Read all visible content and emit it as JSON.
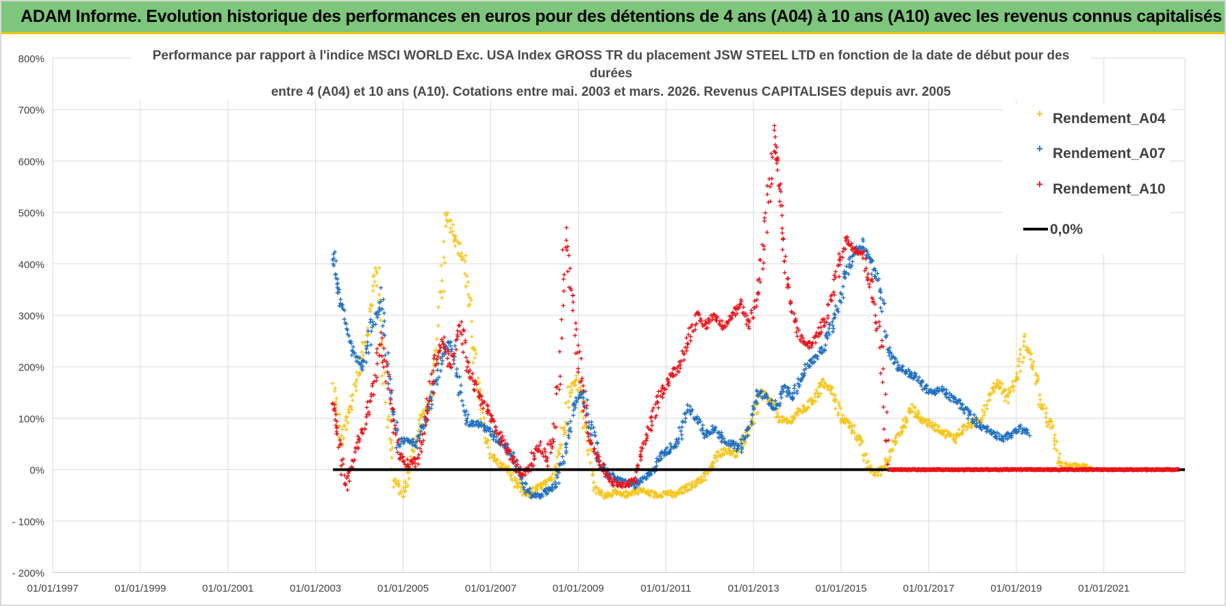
{
  "banner": {
    "title": "ADAM Informe. Evolution historique des performances en euros pour des détentions de 4 ans (A04) à 10 ans (A10) avec les revenus connus capitalisés"
  },
  "colors": {
    "banner_bg": "#7dc67b",
    "banner_border": "#f1c40f",
    "a04": "#f5c518",
    "a07": "#1f6fbf",
    "a10": "#e8141b",
    "zero": "#000000",
    "grid": "#d9d9d9"
  },
  "chart_data": {
    "type": "scatter",
    "title_lines": [
      "Performance par rapport à l'indice MSCI WORLD Exc. USA Index GROSS TR  du placement JSW STEEL LTD en fonction de la date de début pour des",
      "durées",
      "entre 4 (A04) et 10 ans (A10).  Cotations entre mai. 2003 et mars. 2026. Revenus CAPITALISES depuis avr. 2005"
    ],
    "xlim": [
      1997.0,
      2022.85
    ],
    "ylim": [
      -200,
      800
    ],
    "x_ticks": [
      1997,
      1999,
      2001,
      2003,
      2005,
      2007,
      2009,
      2011,
      2013,
      2015,
      2017,
      2019,
      2021
    ],
    "x_tick_labels": [
      "01/01/1997",
      "01/01/1999",
      "01/01/2001",
      "01/01/2003",
      "01/01/2005",
      "01/01/2007",
      "01/01/2009",
      "01/01/2011",
      "01/01/2013",
      "01/01/2015",
      "01/01/2017",
      "01/01/2019",
      "01/01/2021"
    ],
    "y_ticks": [
      -200,
      -100,
      0,
      100,
      200,
      300,
      400,
      500,
      600,
      700,
      800
    ],
    "y_tick_labels": [
      "- 200%",
      "- 100%",
      "0%",
      "100%",
      "200%",
      "300%",
      "400%",
      "500%",
      "600%",
      "700%",
      "800%"
    ],
    "legend_position": "top-right",
    "legend": [
      {
        "key": "a04",
        "label": "Rendement_A04",
        "marker": "+"
      },
      {
        "key": "a07",
        "label": "Rendement_A07",
        "marker": "+"
      },
      {
        "key": "a10",
        "label": "Rendement_A10",
        "marker": "+"
      },
      {
        "key": "zero",
        "label": "0,0%",
        "marker": "line"
      }
    ],
    "series": [
      {
        "key": "a04",
        "name": "Rendement_A04",
        "x": [
          2003.4,
          2003.6,
          2003.8,
          2004.0,
          2004.2,
          2004.4,
          2004.6,
          2004.8,
          2005.0,
          2005.2,
          2005.4,
          2005.6,
          2005.8,
          2006.0,
          2006.2,
          2006.4,
          2006.6,
          2006.8,
          2007.0,
          2007.2,
          2007.4,
          2007.6,
          2007.8,
          2008.0,
          2008.2,
          2008.4,
          2008.6,
          2008.8,
          2009.0,
          2009.2,
          2009.4,
          2009.6,
          2009.8,
          2010.0,
          2010.2,
          2010.4,
          2010.6,
          2010.8,
          2011.0,
          2011.2,
          2011.4,
          2011.6,
          2011.8,
          2012.0,
          2012.2,
          2012.4,
          2012.6,
          2012.8,
          2013.0,
          2013.2,
          2013.4,
          2013.6,
          2013.8,
          2014.0,
          2014.2,
          2014.4,
          2014.6,
          2014.8,
          2015.0,
          2015.2,
          2015.4,
          2015.6,
          2015.8,
          2016.0,
          2016.2,
          2016.4,
          2016.6,
          2016.8,
          2017.0,
          2017.2,
          2017.4,
          2017.6,
          2017.8,
          2018.0,
          2018.2,
          2018.4,
          2018.6,
          2018.8,
          2019.0,
          2019.2,
          2019.4,
          2019.6,
          2019.8,
          2020.0,
          2020.2,
          2020.4,
          2020.6,
          2020.8,
          2021.0,
          2021.2,
          2021.4,
          2021.6,
          2021.8,
          2022.0
        ],
        "values": [
          160,
          50,
          120,
          200,
          280,
          400,
          150,
          -20,
          -50,
          20,
          100,
          130,
          250,
          500,
          450,
          400,
          250,
          100,
          30,
          10,
          0,
          -30,
          -50,
          -40,
          -30,
          -20,
          50,
          150,
          180,
          60,
          -40,
          -50,
          -45,
          -50,
          -45,
          -40,
          -45,
          -50,
          -45,
          -50,
          -40,
          -30,
          -20,
          0,
          30,
          40,
          30,
          60,
          100,
          150,
          130,
          100,
          90,
          110,
          120,
          140,
          170,
          150,
          100,
          90,
          60,
          10,
          -10,
          10,
          50,
          80,
          120,
          100,
          90,
          80,
          70,
          60,
          80,
          90,
          100,
          150,
          170,
          140,
          180,
          250,
          200,
          120,
          80,
          10,
          5,
          10,
          5,
          0,
          0,
          0,
          0,
          0,
          0,
          0
        ]
      },
      {
        "key": "a07",
        "name": "Rendement_A07",
        "x": [
          2003.4,
          2003.5,
          2003.7,
          2003.9,
          2004.1,
          2004.3,
          2004.5,
          2004.7,
          2004.9,
          2005.1,
          2005.3,
          2005.5,
          2005.7,
          2005.9,
          2006.1,
          2006.3,
          2006.5,
          2006.7,
          2006.9,
          2007.1,
          2007.3,
          2007.5,
          2007.7,
          2007.9,
          2008.1,
          2008.3,
          2008.5,
          2008.7,
          2008.9,
          2009.1,
          2009.3,
          2009.5,
          2009.7,
          2009.9,
          2010.1,
          2010.3,
          2010.5,
          2010.7,
          2010.9,
          2011.1,
          2011.3,
          2011.5,
          2011.7,
          2011.9,
          2012.1,
          2012.3,
          2012.5,
          2012.7,
          2012.9,
          2013.1,
          2013.3,
          2013.5,
          2013.7,
          2013.9,
          2014.1,
          2014.3,
          2014.5,
          2014.7,
          2014.9,
          2015.1,
          2015.3,
          2015.5,
          2015.7,
          2015.9,
          2016.1,
          2016.3,
          2016.5,
          2016.7,
          2016.9,
          2017.1,
          2017.3,
          2017.5,
          2017.7,
          2017.9,
          2018.1,
          2018.3,
          2018.5,
          2018.7,
          2018.9,
          2019.1,
          2019.3
        ],
        "values": [
          420,
          350,
          280,
          220,
          200,
          280,
          330,
          150,
          50,
          60,
          50,
          100,
          150,
          220,
          250,
          150,
          90,
          90,
          80,
          60,
          50,
          30,
          -20,
          -50,
          -50,
          -40,
          -30,
          40,
          120,
          150,
          80,
          10,
          -10,
          -20,
          -25,
          -30,
          -20,
          0,
          30,
          40,
          60,
          120,
          100,
          70,
          80,
          60,
          50,
          40,
          80,
          150,
          140,
          120,
          160,
          140,
          180,
          210,
          220,
          260,
          300,
          380,
          420,
          440,
          400,
          350,
          230,
          200,
          190,
          180,
          160,
          150,
          155,
          140,
          130,
          110,
          90,
          80,
          70,
          60,
          70,
          80,
          70
        ]
      },
      {
        "key": "a10",
        "name": "Rendement_A10",
        "x": [
          2003.4,
          2003.5,
          2003.7,
          2003.9,
          2004.1,
          2004.3,
          2004.5,
          2004.7,
          2004.9,
          2005.1,
          2005.3,
          2005.5,
          2005.7,
          2005.9,
          2006.1,
          2006.3,
          2006.5,
          2006.7,
          2006.9,
          2007.1,
          2007.3,
          2007.5,
          2007.7,
          2007.9,
          2008.1,
          2008.3,
          2008.5,
          2008.7,
          2008.9,
          2009.1,
          2009.3,
          2009.5,
          2009.7,
          2009.9,
          2010.1,
          2010.3,
          2010.5,
          2010.7,
          2010.9,
          2011.1,
          2011.3,
          2011.5,
          2011.7,
          2011.9,
          2012.1,
          2012.3,
          2012.5,
          2012.7,
          2012.9,
          2013.1,
          2013.3,
          2013.5,
          2013.6,
          2013.7,
          2013.9,
          2014.1,
          2014.3,
          2014.5,
          2014.7,
          2014.9,
          2015.1,
          2015.3,
          2015.5,
          2015.7,
          2015.9,
          2016.1,
          2016.3,
          2016.5,
          2016.7,
          2016.9,
          2017.1,
          2017.3,
          2017.5,
          2017.7,
          2017.9,
          2018.1,
          2018.3,
          2018.5,
          2018.7,
          2018.9,
          2019.1,
          2019.3,
          2019.5,
          2019.7,
          2019.9,
          2020.1,
          2020.3,
          2020.5,
          2020.7,
          2020.9,
          2021.1,
          2021.3,
          2021.5,
          2021.7,
          2021.9,
          2022.1,
          2022.3,
          2022.5,
          2022.7
        ],
        "values": [
          130,
          60,
          -30,
          30,
          80,
          150,
          250,
          150,
          30,
          10,
          20,
          80,
          200,
          250,
          200,
          280,
          200,
          150,
          120,
          80,
          50,
          20,
          -10,
          10,
          50,
          20,
          100,
          450,
          300,
          150,
          50,
          10,
          -20,
          -30,
          -30,
          -20,
          50,
          100,
          150,
          180,
          200,
          250,
          300,
          280,
          300,
          280,
          300,
          320,
          280,
          350,
          500,
          650,
          560,
          400,
          300,
          250,
          240,
          270,
          300,
          380,
          450,
          430,
          420,
          350,
          250,
          0,
          0,
          0,
          0,
          0,
          0,
          0,
          0,
          0,
          0,
          0,
          0,
          0,
          0,
          0,
          0,
          0,
          0,
          0,
          0,
          0,
          0,
          0,
          0,
          0,
          0,
          0,
          0,
          0,
          0,
          0,
          0,
          0,
          0
        ]
      }
    ],
    "zero_line": {
      "name": "0,0%",
      "x_start": 2003.4,
      "x_end": 2022.85,
      "value": 0
    }
  }
}
